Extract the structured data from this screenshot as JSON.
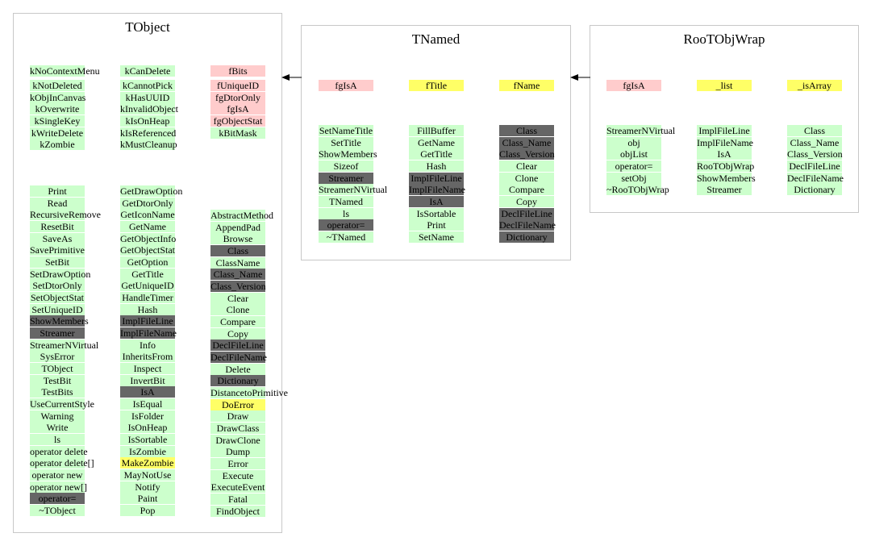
{
  "colors": {
    "normal": "#ccffcc",
    "inherited": "#666666",
    "data": "#ffcccc",
    "member": "#ffff66"
  },
  "classes": [
    {
      "id": "tobject",
      "title": "TObject",
      "groups": [
        {
          "col": 0,
          "items": [
            {
              "t": "kNoContextMenu",
              "s": "normal"
            },
            {
              "t": "kNotDeleted",
              "s": "normal"
            },
            {
              "t": "kObjInCanvas",
              "s": "normal"
            },
            {
              "t": "kOverwrite",
              "s": "normal"
            },
            {
              "t": "kSingleKey",
              "s": "normal"
            },
            {
              "t": "kWriteDelete",
              "s": "normal"
            },
            {
              "t": "kZombie",
              "s": "normal"
            }
          ]
        },
        {
          "col": 1,
          "items": [
            {
              "t": "kCanDelete",
              "s": "normal"
            },
            {
              "t": "kCannotPick",
              "s": "normal"
            },
            {
              "t": "kHasUUID",
              "s": "normal"
            },
            {
              "t": "kInvalidObject",
              "s": "normal"
            },
            {
              "t": "kIsOnHeap",
              "s": "normal"
            },
            {
              "t": "kIsReferenced",
              "s": "normal"
            },
            {
              "t": "kMustCleanup",
              "s": "normal"
            }
          ]
        },
        {
          "col": 2,
          "items": [
            {
              "t": "fBits",
              "s": "data"
            },
            {
              "t": "fUniqueID",
              "s": "data"
            },
            {
              "t": "fgDtorOnly",
              "s": "data"
            },
            {
              "t": "fgIsA",
              "s": "data"
            },
            {
              "t": "fgObjectStat",
              "s": "data"
            },
            {
              "t": "kBitMask",
              "s": "normal"
            }
          ]
        },
        {
          "col": 0,
          "items": [
            {
              "t": "Print",
              "s": "normal"
            },
            {
              "t": "Read",
              "s": "normal"
            },
            {
              "t": "RecursiveRemove",
              "s": "normal"
            },
            {
              "t": "ResetBit",
              "s": "normal"
            },
            {
              "t": "SaveAs",
              "s": "normal"
            },
            {
              "t": "SavePrimitive",
              "s": "normal"
            },
            {
              "t": "SetBit",
              "s": "normal"
            },
            {
              "t": "SetDrawOption",
              "s": "normal"
            },
            {
              "t": "SetDtorOnly",
              "s": "normal"
            },
            {
              "t": "SetObjectStat",
              "s": "normal"
            },
            {
              "t": "SetUniqueID",
              "s": "normal"
            },
            {
              "t": "ShowMembers",
              "s": "inherited"
            },
            {
              "t": "Streamer",
              "s": "inherited"
            },
            {
              "t": "StreamerNVirtual",
              "s": "normal"
            },
            {
              "t": "SysError",
              "s": "normal"
            },
            {
              "t": "TObject",
              "s": "normal"
            },
            {
              "t": "TestBit",
              "s": "normal"
            },
            {
              "t": "TestBits",
              "s": "normal"
            },
            {
              "t": "UseCurrentStyle",
              "s": "normal"
            },
            {
              "t": "Warning",
              "s": "normal"
            },
            {
              "t": "Write",
              "s": "normal"
            },
            {
              "t": "ls",
              "s": "normal"
            },
            {
              "t": "operator delete",
              "s": "normal"
            },
            {
              "t": "operator delete[]",
              "s": "normal"
            },
            {
              "t": "operator new",
              "s": "normal"
            },
            {
              "t": "operator new[]",
              "s": "normal"
            },
            {
              "t": "operator=",
              "s": "inherited"
            },
            {
              "t": "~TObject",
              "s": "normal"
            }
          ]
        },
        {
          "col": 1,
          "items": [
            {
              "t": "GetDrawOption",
              "s": "normal"
            },
            {
              "t": "GetDtorOnly",
              "s": "normal"
            },
            {
              "t": "GetIconName",
              "s": "normal"
            },
            {
              "t": "GetName",
              "s": "normal"
            },
            {
              "t": "GetObjectInfo",
              "s": "normal"
            },
            {
              "t": "GetObjectStat",
              "s": "normal"
            },
            {
              "t": "GetOption",
              "s": "normal"
            },
            {
              "t": "GetTitle",
              "s": "normal"
            },
            {
              "t": "GetUniqueID",
              "s": "normal"
            },
            {
              "t": "HandleTimer",
              "s": "normal"
            },
            {
              "t": "Hash",
              "s": "normal"
            },
            {
              "t": "ImplFileLine",
              "s": "inherited"
            },
            {
              "t": "ImplFileName",
              "s": "inherited"
            },
            {
              "t": "Info",
              "s": "normal"
            },
            {
              "t": "InheritsFrom",
              "s": "normal"
            },
            {
              "t": "Inspect",
              "s": "normal"
            },
            {
              "t": "InvertBit",
              "s": "normal"
            },
            {
              "t": "IsA",
              "s": "inherited"
            },
            {
              "t": "IsEqual",
              "s": "normal"
            },
            {
              "t": "IsFolder",
              "s": "normal"
            },
            {
              "t": "IsOnHeap",
              "s": "normal"
            },
            {
              "t": "IsSortable",
              "s": "normal"
            },
            {
              "t": "IsZombie",
              "s": "normal"
            },
            {
              "t": "MakeZombie",
              "s": "member"
            },
            {
              "t": "MayNotUse",
              "s": "normal"
            },
            {
              "t": "Notify",
              "s": "normal"
            },
            {
              "t": "Paint",
              "s": "normal"
            },
            {
              "t": "Pop",
              "s": "normal"
            }
          ]
        },
        {
          "col": 2,
          "items": [
            {
              "t": "AbstractMethod",
              "s": "normal"
            },
            {
              "t": "AppendPad",
              "s": "normal"
            },
            {
              "t": "Browse",
              "s": "normal"
            },
            {
              "t": "Class",
              "s": "inherited"
            },
            {
              "t": "ClassName",
              "s": "normal"
            },
            {
              "t": "Class_Name",
              "s": "inherited"
            },
            {
              "t": "Class_Version",
              "s": "inherited"
            },
            {
              "t": "Clear",
              "s": "normal"
            },
            {
              "t": "Clone",
              "s": "normal"
            },
            {
              "t": "Compare",
              "s": "normal"
            },
            {
              "t": "Copy",
              "s": "normal"
            },
            {
              "t": "DeclFileLine",
              "s": "inherited"
            },
            {
              "t": "DeclFileName",
              "s": "inherited"
            },
            {
              "t": "Delete",
              "s": "normal"
            },
            {
              "t": "Dictionary",
              "s": "inherited"
            },
            {
              "t": "DistancetoPrimitive",
              "s": "normal"
            },
            {
              "t": "DoError",
              "s": "member"
            },
            {
              "t": "Draw",
              "s": "normal"
            },
            {
              "t": "DrawClass",
              "s": "normal"
            },
            {
              "t": "DrawClone",
              "s": "normal"
            },
            {
              "t": "Dump",
              "s": "normal"
            },
            {
              "t": "Error",
              "s": "normal"
            },
            {
              "t": "Execute",
              "s": "normal"
            },
            {
              "t": "ExecuteEvent",
              "s": "normal"
            },
            {
              "t": "Fatal",
              "s": "normal"
            },
            {
              "t": "FindObject",
              "s": "normal"
            }
          ]
        }
      ]
    },
    {
      "id": "tnamed",
      "title": "TNamed",
      "groups": [
        {
          "col": 0,
          "items": [
            {
              "t": "fgIsA",
              "s": "data"
            }
          ]
        },
        {
          "col": 1,
          "items": [
            {
              "t": "fTitle",
              "s": "member"
            }
          ]
        },
        {
          "col": 2,
          "items": [
            {
              "t": "fName",
              "s": "member"
            }
          ]
        },
        {
          "col": 0,
          "items": [
            {
              "t": "SetNameTitle",
              "s": "normal"
            },
            {
              "t": "SetTitle",
              "s": "normal"
            },
            {
              "t": "ShowMembers",
              "s": "normal"
            },
            {
              "t": "Sizeof",
              "s": "normal"
            },
            {
              "t": "Streamer",
              "s": "inherited"
            },
            {
              "t": "StreamerNVirtual",
              "s": "normal"
            },
            {
              "t": "TNamed",
              "s": "normal"
            },
            {
              "t": "ls",
              "s": "normal"
            },
            {
              "t": "operator=",
              "s": "inherited"
            },
            {
              "t": "~TNamed",
              "s": "normal"
            }
          ]
        },
        {
          "col": 1,
          "items": [
            {
              "t": "FillBuffer",
              "s": "normal"
            },
            {
              "t": "GetName",
              "s": "normal"
            },
            {
              "t": "GetTitle",
              "s": "normal"
            },
            {
              "t": "Hash",
              "s": "normal"
            },
            {
              "t": "ImplFileLine",
              "s": "inherited"
            },
            {
              "t": "ImplFileName",
              "s": "inherited"
            },
            {
              "t": "IsA",
              "s": "inherited"
            },
            {
              "t": "IsSortable",
              "s": "normal"
            },
            {
              "t": "Print",
              "s": "normal"
            },
            {
              "t": "SetName",
              "s": "normal"
            }
          ]
        },
        {
          "col": 2,
          "items": [
            {
              "t": "Class",
              "s": "inherited"
            },
            {
              "t": "Class_Name",
              "s": "inherited"
            },
            {
              "t": "Class_Version",
              "s": "inherited"
            },
            {
              "t": "Clear",
              "s": "normal"
            },
            {
              "t": "Clone",
              "s": "normal"
            },
            {
              "t": "Compare",
              "s": "normal"
            },
            {
              "t": "Copy",
              "s": "normal"
            },
            {
              "t": "DeclFileLine",
              "s": "inherited"
            },
            {
              "t": "DeclFileName",
              "s": "inherited"
            },
            {
              "t": "Dictionary",
              "s": "inherited"
            }
          ]
        }
      ]
    },
    {
      "id": "rootobjwrap",
      "title": "RooTObjWrap",
      "groups": [
        {
          "col": 0,
          "items": [
            {
              "t": "fgIsA",
              "s": "data"
            }
          ]
        },
        {
          "col": 1,
          "items": [
            {
              "t": "_list",
              "s": "member"
            }
          ]
        },
        {
          "col": 2,
          "items": [
            {
              "t": "_isArray",
              "s": "member"
            }
          ]
        },
        {
          "col": 0,
          "items": [
            {
              "t": "StreamerNVirtual",
              "s": "normal"
            },
            {
              "t": "obj",
              "s": "normal"
            },
            {
              "t": "objList",
              "s": "normal"
            },
            {
              "t": "operator=",
              "s": "normal"
            },
            {
              "t": "setObj",
              "s": "normal"
            },
            {
              "t": "~RooTObjWrap",
              "s": "normal"
            }
          ]
        },
        {
          "col": 1,
          "items": [
            {
              "t": "ImplFileLine",
              "s": "normal"
            },
            {
              "t": "ImplFileName",
              "s": "normal"
            },
            {
              "t": "IsA",
              "s": "normal"
            },
            {
              "t": "RooTObjWrap",
              "s": "normal"
            },
            {
              "t": "ShowMembers",
              "s": "normal"
            },
            {
              "t": "Streamer",
              "s": "normal"
            }
          ]
        },
        {
          "col": 2,
          "items": [
            {
              "t": "Class",
              "s": "normal"
            },
            {
              "t": "Class_Name",
              "s": "normal"
            },
            {
              "t": "Class_Version",
              "s": "normal"
            },
            {
              "t": "DeclFileLine",
              "s": "normal"
            },
            {
              "t": "DeclFileName",
              "s": "normal"
            },
            {
              "t": "Dictionary",
              "s": "normal"
            }
          ]
        }
      ]
    }
  ]
}
